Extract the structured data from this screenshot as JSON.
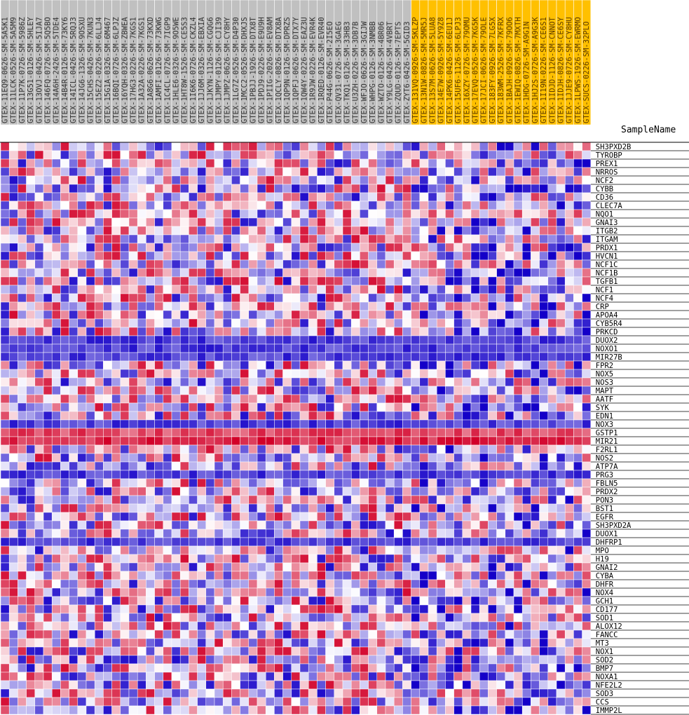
{
  "chart_data": {
    "type": "heatmap",
    "header_label": "SampleName",
    "samples": [
      {
        "name": "GTEX-11EQ9-0626-SM-5A5K1",
        "group": "control"
      },
      {
        "name": "GTEX-11LCK-0526-SM-5A5M9",
        "group": "control"
      },
      {
        "name": "GTEX-11P7K-0726-SM-5986Z",
        "group": "control"
      },
      {
        "name": "GTEX-13G51-0126-SM-5HLEY",
        "group": "control"
      },
      {
        "name": "GTEX-13OVJ-0426-SM-5IJA7",
        "group": "control"
      },
      {
        "name": "GTEX-146FQ-0726-SM-5Q5BO",
        "group": "control"
      },
      {
        "name": "GTEX-14A6H-2426-SM-5TDE4",
        "group": "control"
      },
      {
        "name": "GTEX-14B4R-0126-SM-73KY6",
        "group": "control"
      },
      {
        "name": "GTEX-14ICL-0426-SM-5RQJ3",
        "group": "control"
      },
      {
        "name": "GTEX-14JG6-1326-SM-9OSXU",
        "group": "control"
      },
      {
        "name": "GTEX-15CHS-0426-SM-7KUN3",
        "group": "control"
      },
      {
        "name": "GTEX-15EZ2-0226-SM-6LLJ4",
        "group": "control"
      },
      {
        "name": "GTEX-15G1A-0326-SM-6M467",
        "group": "control"
      },
      {
        "name": "GTEX-16BQI-0726-SM-6LPJZ",
        "group": "control"
      },
      {
        "name": "GTEX-16YQH-0326-SM-ZBWEA",
        "group": "control"
      },
      {
        "name": "GTEX-17HG3-0226-SM-7KGS1",
        "group": "control"
      },
      {
        "name": "GTEX-1A32A-0226-SM-7KGS1",
        "group": "control"
      },
      {
        "name": "GTEX-1A8G6-0626-SM-73KXD",
        "group": "control"
      },
      {
        "name": "GTEX-1AMFI-0126-SM-73KWG",
        "group": "control"
      },
      {
        "name": "GTEX-1C4CL-0726-SM-7IGP9",
        "group": "control"
      },
      {
        "name": "GTEX-1HLE6-0326-SM-9O5WE",
        "group": "control"
      },
      {
        "name": "GTEX-1HT8W-1526-SM-CE5S3",
        "group": "control"
      },
      {
        "name": "GTEX-1I6K6-0726-SM-CKZL4",
        "group": "control"
      },
      {
        "name": "GTEX-1JJ6M-0326-SM-EBXIA",
        "group": "control"
      },
      {
        "name": "GTEX-1JKYN-1126-SM-CGQG6",
        "group": "control"
      },
      {
        "name": "GTEX-1JMPY-0126-SM-CJI39",
        "group": "control"
      },
      {
        "name": "GTEX-1JMPZ-0626-SM-CY8HY",
        "group": "control"
      },
      {
        "name": "GTEX-1LG7Z-0526-SM-D4P30",
        "group": "control"
      },
      {
        "name": "GTEX-1MCC2-0526-SM-DHXJS",
        "group": "control"
      },
      {
        "name": "GTEX-1PBJJ-1926-SM-DTX8T",
        "group": "control"
      },
      {
        "name": "GTEX-1PDJ9-0226-SM-E9U9H",
        "group": "control"
      },
      {
        "name": "GTEX-1PIIG-2026-SM-EV8AM",
        "group": "control"
      },
      {
        "name": "GTEX-1QCLY-0826-SM-DTX8A",
        "group": "control"
      },
      {
        "name": "GTEX-1QP9N-0126-SM-DPRZS",
        "group": "control"
      },
      {
        "name": "GTEX-1QPFJ-0626-SM-DTX7Y",
        "group": "control"
      },
      {
        "name": "GTEX-1QW4Y-0226-SM-EAZ3U",
        "group": "control"
      },
      {
        "name": "GTEX-1R9JW-0226-SM-EVR4K",
        "group": "control"
      },
      {
        "name": "GTEX-1RQED-0126-SM-EVR40",
        "group": "control"
      },
      {
        "name": "GTEX-P44G-0626-SM-2I5EO",
        "group": "control"
      },
      {
        "name": "GTEX-QV31-0726-SM-3GAEG",
        "group": "control"
      },
      {
        "name": "GTEX-TKQ1-0126-SM-33HB3",
        "group": "control"
      },
      {
        "name": "GTEX-U3ZH-0226-SM-3DB7B",
        "group": "control"
      },
      {
        "name": "GTEX-WFJO-0626-SM-3GIJW",
        "group": "control"
      },
      {
        "name": "GTEX-WHPG-0126-SM-3NMBB",
        "group": "control"
      },
      {
        "name": "GTEX-WZTO-0126-SM-4BR06",
        "group": "control"
      },
      {
        "name": "GTEX-Y9LG-0426-SM-4VBRT",
        "group": "control"
      },
      {
        "name": "GTEX-ZQUD-0126-SM-7EPTS",
        "group": "control"
      },
      {
        "name": "GTEX-ZYT6-0426-SM-5GID3",
        "group": "control"
      },
      {
        "name": "GTEX-131VQ-0926-SM-5KLZP",
        "group": "highlight"
      },
      {
        "name": "GTEX-13N1W-0826-SM-5MR5J",
        "group": "highlight"
      },
      {
        "name": "GTEX-13S7M-0626-SM-5LUA8",
        "group": "highlight"
      },
      {
        "name": "GTEX-14E7W-0926-SM-5Y9Z8",
        "group": "highlight"
      },
      {
        "name": "GTEX-14PK6-0426-SM-6EU1J",
        "group": "highlight"
      },
      {
        "name": "GTEX-15UF6-1126-SM-6LPJ3",
        "group": "highlight"
      },
      {
        "name": "GTEX-16XZY-0726-SM-79OMU",
        "group": "highlight"
      },
      {
        "name": "GTEX-17EVQ-0526-SM-7KG5K",
        "group": "highlight"
      },
      {
        "name": "GTEX-17JCI-0626-SM-79OLE",
        "group": "highlight"
      },
      {
        "name": "GTEX-183FY-0926-SM-7LG5X",
        "group": "highlight"
      },
      {
        "name": "GTEX-183WM-2526-SM-7KFRX",
        "group": "highlight"
      },
      {
        "name": "GTEX-1BAJH-0926-SM-79OO6",
        "group": "highlight"
      },
      {
        "name": "GTEX-1EWIQ-0826-SM-7MXTH",
        "group": "highlight"
      },
      {
        "name": "GTEX-1HDG-0726-SM-A9G1N",
        "group": "highlight"
      },
      {
        "name": "GTEX-1HJ2S-0726-SM-A9G3K",
        "group": "highlight"
      },
      {
        "name": "GTEX-1I19N-0226-SM-CE6S1",
        "group": "highlight"
      },
      {
        "name": "GTEX-1IDJD-1126-SM-CNNOT",
        "group": "highlight"
      },
      {
        "name": "GTEX-1IDJH-0826-SM-CE6SY",
        "group": "highlight"
      },
      {
        "name": "GTEX-1JJE9-0726-SM-CY8HU",
        "group": "highlight"
      },
      {
        "name": "GTEX-1LPWS-1926-SM-EWRMO",
        "group": "highlight"
      },
      {
        "name": "GTEX-SUCS-0226-SM-32PLO",
        "group": "highlight"
      }
    ],
    "genes": [
      "SH3PXD2B",
      "TYROBP",
      "PREX1",
      "NRROS",
      "NCF2",
      "CYBB",
      "CD36",
      "CLEC7A",
      "NQO1",
      "GNAI3",
      "ITGB2",
      "ITGAM",
      "PRDX1",
      "HVCN1",
      "NCF1C",
      "NCF1B",
      "TGFB1",
      "NCF1",
      "NCF4",
      "CRP",
      "APOA4",
      "CYB5R4",
      "PRKCD",
      "DUOX2",
      "NOXO1",
      "MIR27B",
      "FPR2",
      "NOX5",
      "NOS3",
      "MAPT",
      "AATF",
      "SYK",
      "EDN1",
      "NOX3",
      "GSTP1",
      "MIR21",
      "F2RL1",
      "NOS2",
      "ATP7A",
      "PRG3",
      "FBLN5",
      "PRDX2",
      "PON3",
      "BST1",
      "EGFR",
      "SH3PXD2A",
      "DUOX1",
      "DHFRP1",
      "MPO",
      "H19",
      "GNAI2",
      "CYBA",
      "DHFR",
      "NOX4",
      "GCH1",
      "CD177",
      "SOD1",
      "ALOX12",
      "FANCC",
      "MT3",
      "NOX1",
      "SOD2",
      "BMP7",
      "NOXA1",
      "NFE2L2",
      "SOD3",
      "CCS",
      "IMMP2L"
    ],
    "color_scale": {
      "low": "#0000ff",
      "mid": "#ffffff",
      "high": "#ff0000"
    },
    "sample_group_colors": {
      "control": "#c0c0c0",
      "highlight": "#ffc000"
    }
  }
}
